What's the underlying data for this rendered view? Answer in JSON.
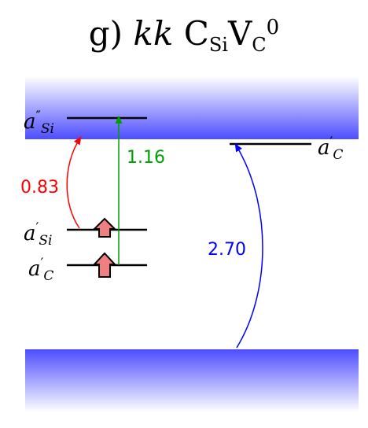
{
  "title": {
    "prefix": "g)",
    "site": "kk",
    "main1": "C",
    "sub1": "Si",
    "main2": "V",
    "sub2": "C",
    "charge": "0"
  },
  "levels": {
    "a2_si": {
      "base": "a",
      "prime": "″",
      "sub": "Si"
    },
    "a1_c_right": {
      "base": "a",
      "prime": "′",
      "sub": "C"
    },
    "a1_si": {
      "base": "a",
      "prime": "′",
      "sub": "Si"
    },
    "a1_c_left": {
      "base": "a",
      "prime": "′",
      "sub": "C"
    }
  },
  "transitions": [
    {
      "value": "0.83",
      "color": "#ff0000"
    },
    {
      "value": "1.16",
      "color": "#00a000"
    },
    {
      "value": "2.70",
      "color": "#0000ff"
    }
  ],
  "colors": {
    "band": "#4d4dff",
    "arrow_fill": "#f08080"
  }
}
